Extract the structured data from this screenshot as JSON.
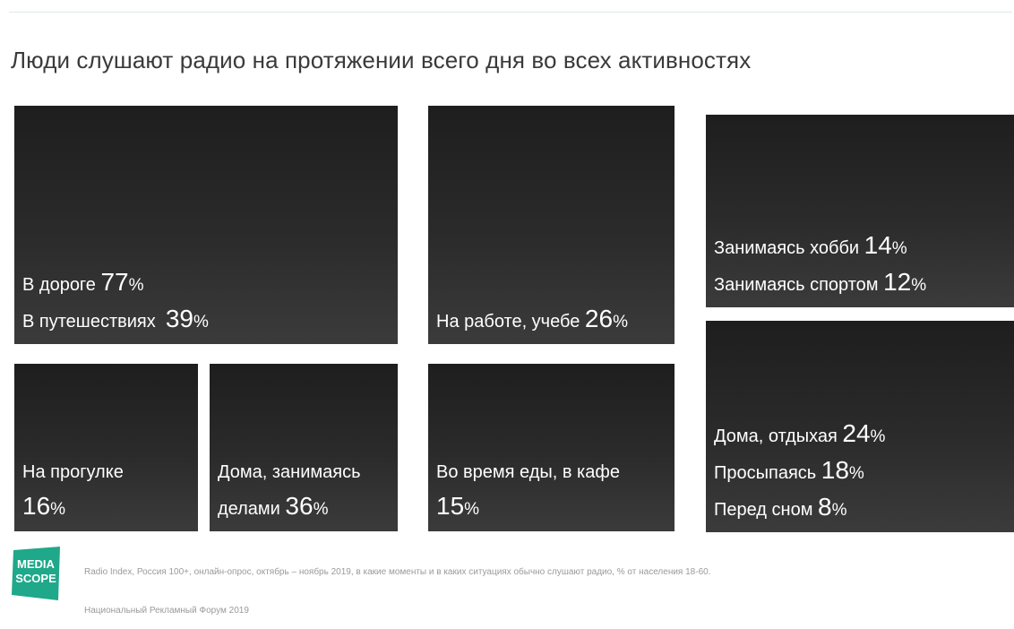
{
  "title": "Люди слушают радио на протяжении всего дня во всех активностях",
  "tiles": [
    {
      "id": "road-travel",
      "lines": [
        {
          "label": "В дороге ",
          "value": "77",
          "unit": "%"
        },
        {
          "label": "В путешествиях  ",
          "value": "39",
          "unit": "%"
        }
      ]
    },
    {
      "id": "work-study",
      "lines": [
        {
          "label": "На работе, учебе ",
          "value": "26",
          "unit": "%"
        }
      ]
    },
    {
      "id": "hobby-sport",
      "lines": [
        {
          "label": "Занимаясь хобби ",
          "value": "14",
          "unit": "%"
        },
        {
          "label": "Занимаясь спортом ",
          "value": "12",
          "unit": "%"
        }
      ]
    },
    {
      "id": "walk",
      "lines": [
        {
          "label": "На прогулке",
          "value": "",
          "unit": ""
        },
        {
          "label": "",
          "value": "16",
          "unit": "%"
        }
      ]
    },
    {
      "id": "home-chores",
      "lines": [
        {
          "label": "Дома, занимаясь",
          "value": "",
          "unit": ""
        },
        {
          "label": "делами ",
          "value": "36",
          "unit": "%"
        }
      ]
    },
    {
      "id": "eating-cafe",
      "lines": [
        {
          "label": "Во время еды, в кафе",
          "value": "",
          "unit": ""
        },
        {
          "label": "",
          "value": "15",
          "unit": "%"
        }
      ]
    },
    {
      "id": "home-rest",
      "lines": [
        {
          "label": "Дома, отдыхая ",
          "value": "24",
          "unit": "%"
        },
        {
          "label": "Просыпаясь ",
          "value": "18",
          "unit": "%"
        },
        {
          "label": "Перед сном ",
          "value": "8",
          "unit": "%"
        }
      ]
    }
  ],
  "logo": {
    "line1": "MEDIA",
    "line2": "SCOPE",
    "color": "#1fa88a"
  },
  "footnote": "Radio Index, Россия 100+, онлайн-опрос, октябрь – ноябрь 2019, в какие моменты и в каких ситуациях обычно слушают радио, % от населения 18-60.",
  "footer": "Национальный Рекламный Форум 2019"
}
